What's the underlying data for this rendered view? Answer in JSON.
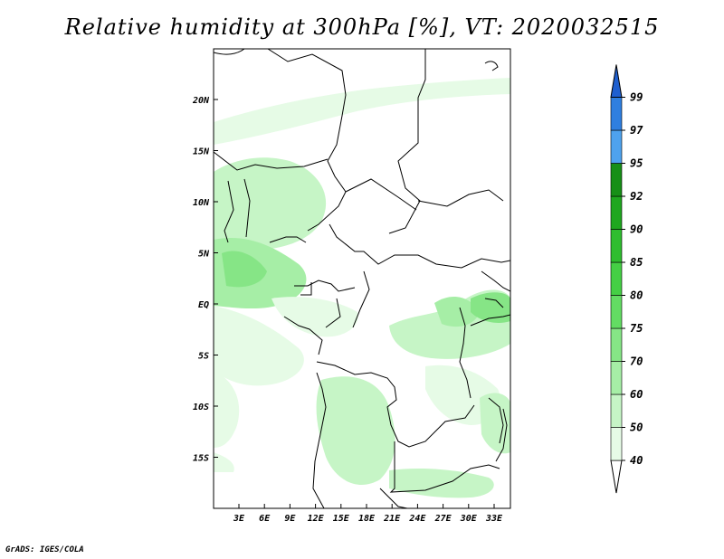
{
  "title": "Relative humidity at 300hPa [%], VT: 2020032515",
  "credit": "GrADS: IGES/COLA",
  "map": {
    "lat_labels": [
      "20N",
      "15N",
      "10N",
      "5N",
      "EQ",
      "5S",
      "10S",
      "15S"
    ],
    "lon_labels": [
      "3E",
      "6E",
      "9E",
      "12E",
      "15E",
      "18E",
      "21E",
      "24E",
      "27E",
      "30E",
      "33E"
    ]
  },
  "colorbar": {
    "levels": [
      "40",
      "50",
      "60",
      "70",
      "75",
      "80",
      "85",
      "90",
      "92",
      "95",
      "97",
      "99"
    ],
    "colors": [
      "#ffffff",
      "#e6fbe6",
      "#c6f5c6",
      "#a6eea6",
      "#86e586",
      "#63dc63",
      "#45cf45",
      "#2fbd2f",
      "#1fa71f",
      "#178f17",
      "#4ea2ee",
      "#2f7fe0",
      "#1f5fcf"
    ]
  }
}
